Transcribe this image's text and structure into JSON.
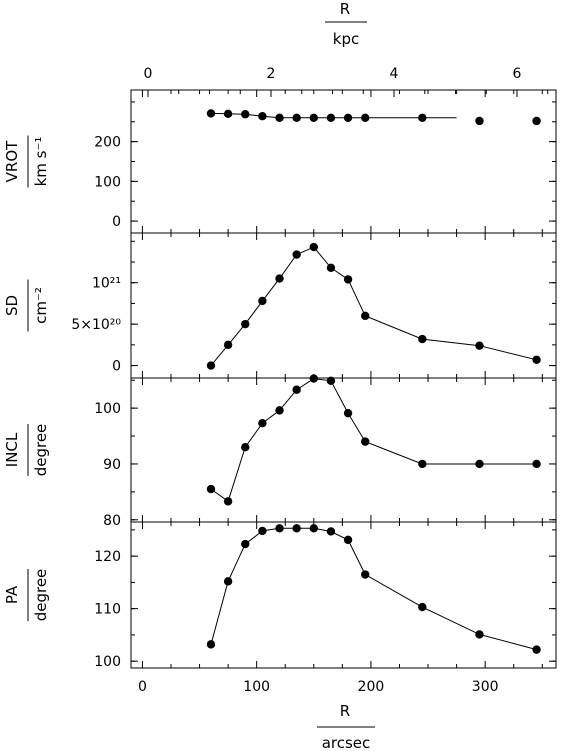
{
  "top_axis": {
    "label": "R",
    "unit": "kpc",
    "ticks": [
      "0",
      "2",
      "4",
      "6"
    ]
  },
  "bottom_axis": {
    "label": "R",
    "unit": "arcsec",
    "ticks": [
      "0",
      "100",
      "200",
      "300"
    ]
  },
  "chart_data": [
    {
      "type": "line",
      "panel": "VROT",
      "ylabel": "VROT",
      "yunit": "km s⁻¹",
      "yticks": [
        "0",
        "100",
        "200"
      ],
      "ylim": [
        -30,
        330
      ],
      "x": [
        60,
        75,
        90,
        105,
        120,
        135,
        150,
        165,
        180,
        195,
        245,
        295,
        345
      ],
      "y": [
        271,
        270,
        269,
        264,
        260,
        260,
        260,
        260,
        260,
        260,
        260,
        252,
        252
      ],
      "line_points": 10
    },
    {
      "type": "line",
      "panel": "SD",
      "ylabel": "SD",
      "yunit": "cm⁻²",
      "yticks": [
        "0",
        "5×10²⁰",
        "10²¹"
      ],
      "ylim": [
        -1.5e+20,
        1.6e+21
      ],
      "x": [
        60,
        75,
        90,
        105,
        120,
        135,
        150,
        165,
        180,
        195,
        245,
        295,
        345
      ],
      "y": [
        0,
        2.5e+20,
        5e+20,
        7.8e+20,
        1.05e+21,
        1.34e+21,
        1.43e+21,
        1.18e+21,
        1.04e+21,
        6e+20,
        3.2e+20,
        2.4e+20,
        7e+19
      ],
      "line_points": 13
    },
    {
      "type": "line",
      "panel": "INCL",
      "ylabel": "INCL",
      "yunit": "degree",
      "yticks": [
        "80",
        "90",
        "100"
      ],
      "ylim": [
        79.6,
        105.4
      ],
      "x": [
        60,
        75,
        90,
        105,
        120,
        135,
        150,
        165,
        180,
        195,
        245,
        295,
        345
      ],
      "y": [
        85.5,
        83.3,
        93,
        97.3,
        99.6,
        103.3,
        105.3,
        104.9,
        99.1,
        94,
        90,
        90,
        90
      ],
      "line_points": 13
    },
    {
      "type": "line",
      "panel": "PA",
      "ylabel": "PA",
      "yunit": "degree",
      "yticks": [
        "100",
        "110",
        "120"
      ],
      "ylim": [
        98.7,
        126.5
      ],
      "x": [
        60,
        75,
        90,
        105,
        120,
        135,
        150,
        165,
        180,
        195,
        245,
        295,
        345
      ],
      "y": [
        103.2,
        115.2,
        122.3,
        124.8,
        125.3,
        125.3,
        125.3,
        124.7,
        123.1,
        116.5,
        110.3,
        105.1,
        102.2
      ],
      "line_points": 13
    }
  ]
}
